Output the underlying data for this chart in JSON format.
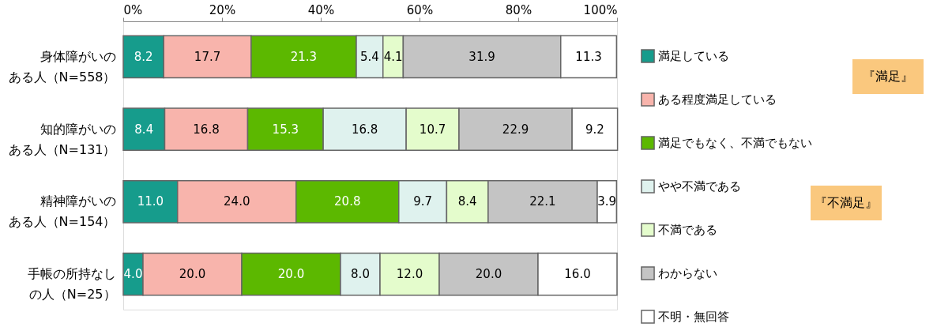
{
  "chart_data": {
    "type": "bar",
    "orientation": "horizontal",
    "stacked": true,
    "grid": false,
    "legend": "right",
    "categories": [
      "身体障がいのある人（N=558）",
      "知的障がいのある人（N=131）",
      "精神障がいのある人（N=154）",
      "手帳の所持なしの人（N=25）"
    ],
    "xlim": [
      0,
      100
    ],
    "xticks": [
      {
        "value": 0,
        "label": "0%"
      },
      {
        "value": 20,
        "label": "20%"
      },
      {
        "value": 40,
        "label": "40%"
      },
      {
        "value": 60,
        "label": "60%"
      },
      {
        "value": 80,
        "label": "80%"
      },
      {
        "value": 100,
        "label": "100%"
      }
    ],
    "series": [
      {
        "name": "満足している",
        "color": "#169c8c",
        "values": [
          8.2,
          8.4,
          11.0,
          4.0
        ],
        "value_labels": [
          "8.2",
          "8.4",
          "11.0",
          "4.0"
        ]
      },
      {
        "name": "ある程度満足している",
        "color": "#f8b4ac",
        "values": [
          17.7,
          16.8,
          24.0,
          20.0
        ],
        "value_labels": [
          "17.7",
          "16.8",
          "24.0",
          "20.0"
        ]
      },
      {
        "name": "満足でもなく、不満でもない",
        "color": "#5cb800",
        "values": [
          21.3,
          15.3,
          20.8,
          20.0
        ],
        "value_labels": [
          "21.3",
          "15.3",
          "20.8",
          "20.0"
        ]
      },
      {
        "name": "やや不満である",
        "color": "#dff2ee",
        "values": [
          5.4,
          16.8,
          9.7,
          8.0
        ],
        "value_labels": [
          "5.4",
          "16.8",
          "9.7",
          "8.0"
        ]
      },
      {
        "name": "不満である",
        "color": "#e4fccc",
        "values": [
          4.1,
          10.7,
          8.4,
          12.0
        ],
        "value_labels": [
          "4.1",
          "10.7",
          "8.4",
          "12.0"
        ]
      },
      {
        "name": "わからない",
        "color": "#c4c4c4",
        "values": [
          31.9,
          22.9,
          22.1,
          20.0
        ],
        "value_labels": [
          "31.9",
          "22.9",
          "22.1",
          "20.0"
        ]
      },
      {
        "name": "不明・無回答",
        "color": "#ffffff",
        "values": [
          11.3,
          9.2,
          3.9,
          16.0
        ],
        "value_labels": [
          "11.3",
          "9.2",
          "3.9",
          "16.0"
        ]
      }
    ],
    "annotations": [
      "『満足』",
      "『不満足』"
    ]
  }
}
